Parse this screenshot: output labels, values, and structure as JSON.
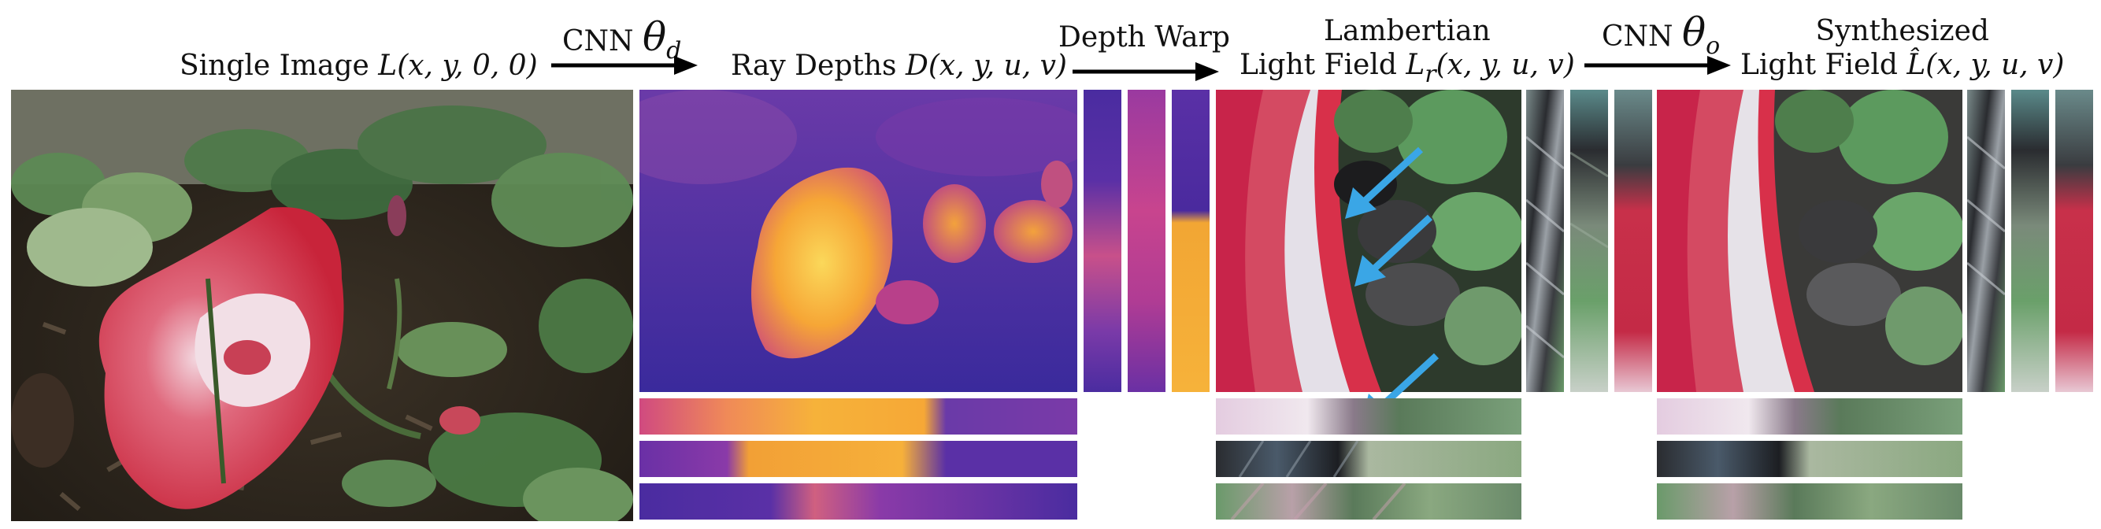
{
  "labels": {
    "single_image": {
      "text": "Single Image",
      "math": "L(x, y, 0, 0)"
    },
    "cnn_d": {
      "text": "CNN",
      "theta": "θ",
      "sub": "d"
    },
    "ray_depths": {
      "text": "Ray Depths",
      "math": "D(x, y, u, v)"
    },
    "depth_warp": {
      "text": "Depth Warp"
    },
    "lambertian": {
      "line1": "Lambertian",
      "line2": "Light Field",
      "math_var": "L",
      "math_sub": "r",
      "math_rest": "(x, y, u, v)"
    },
    "cnn_o": {
      "text": "CNN",
      "theta": "θ",
      "sub": "o"
    },
    "synthesized": {
      "line1": "Synthesized",
      "line2": "Light Field",
      "math": "L̂(x, y, u, v)"
    }
  },
  "colors": {
    "depth_low": "#3a2a9c",
    "depth_mid": "#c03a8c",
    "depth_high": "#f7b43a",
    "flower_red": "#d8354a",
    "foliage": "#4f7a4a",
    "annotation_arrow": "#3aa6e6"
  }
}
